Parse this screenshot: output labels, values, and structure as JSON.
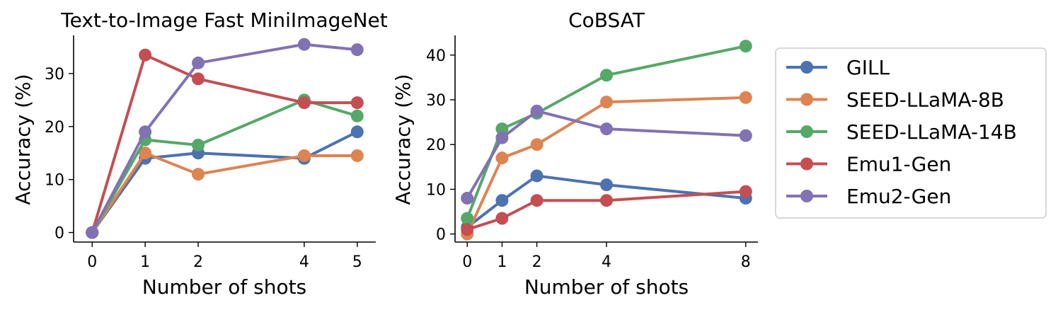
{
  "chart_data": [
    {
      "type": "line",
      "title": "Text-to-Image Fast MiniImageNet",
      "xlabel": "Number of shots",
      "ylabel": "Accuracy (%)",
      "x": [
        0,
        1,
        2,
        4,
        5
      ],
      "xticks": [
        "0",
        "1",
        "2",
        "4",
        "5"
      ],
      "yticks": [
        "0",
        "10",
        "20",
        "30"
      ],
      "ylim": [
        -1.8,
        37.2
      ],
      "series": [
        {
          "name": "GILL",
          "color": "#4c72b0",
          "values": [
            0,
            14,
            15,
            14,
            19
          ]
        },
        {
          "name": "SEED-LLaMA-8B",
          "color": "#dd8452",
          "values": [
            0,
            15,
            11,
            14.5,
            14.5
          ]
        },
        {
          "name": "SEED-LLaMA-14B",
          "color": "#55a868",
          "values": [
            0,
            17.5,
            16.5,
            25,
            22
          ]
        },
        {
          "name": "Emu1-Gen",
          "color": "#c44e52",
          "values": [
            0,
            33.5,
            29,
            24.5,
            24.5
          ]
        },
        {
          "name": "Emu2-Gen",
          "color": "#8172b3",
          "values": [
            0,
            19,
            32,
            35.5,
            34.5
          ]
        }
      ]
    },
    {
      "type": "line",
      "title": "CoBSAT",
      "xlabel": "Number of shots",
      "ylabel": "Accuracy (%)",
      "x": [
        0,
        1,
        2,
        4,
        8
      ],
      "xticks": [
        "0",
        "1",
        "2",
        "4",
        "8"
      ],
      "yticks": [
        "0",
        "10",
        "20",
        "30",
        "40"
      ],
      "ylim": [
        -1.8,
        44.4
      ],
      "series": [
        {
          "name": "GILL",
          "color": "#4c72b0",
          "values": [
            1.5,
            7.5,
            13,
            11,
            8
          ]
        },
        {
          "name": "SEED-LLaMA-8B",
          "color": "#dd8452",
          "values": [
            0,
            17,
            20,
            29.5,
            30.5
          ]
        },
        {
          "name": "SEED-LLaMA-14B",
          "color": "#55a868",
          "values": [
            3.5,
            23.5,
            27,
            35.5,
            42
          ]
        },
        {
          "name": "Emu1-Gen",
          "color": "#c44e52",
          "values": [
            1,
            3.5,
            7.5,
            7.5,
            9.5
          ]
        },
        {
          "name": "Emu2-Gen",
          "color": "#8172b3",
          "values": [
            8,
            21.5,
            27.5,
            23.5,
            22
          ]
        }
      ]
    }
  ],
  "legend": {
    "placement": "right",
    "items": [
      {
        "name": "GILL",
        "color": "#4c72b0"
      },
      {
        "name": "SEED-LLaMA-8B",
        "color": "#dd8452"
      },
      {
        "name": "SEED-LLaMA-14B",
        "color": "#55a868"
      },
      {
        "name": "Emu1-Gen",
        "color": "#c44e52"
      },
      {
        "name": "Emu2-Gen",
        "color": "#8172b3"
      }
    ]
  }
}
